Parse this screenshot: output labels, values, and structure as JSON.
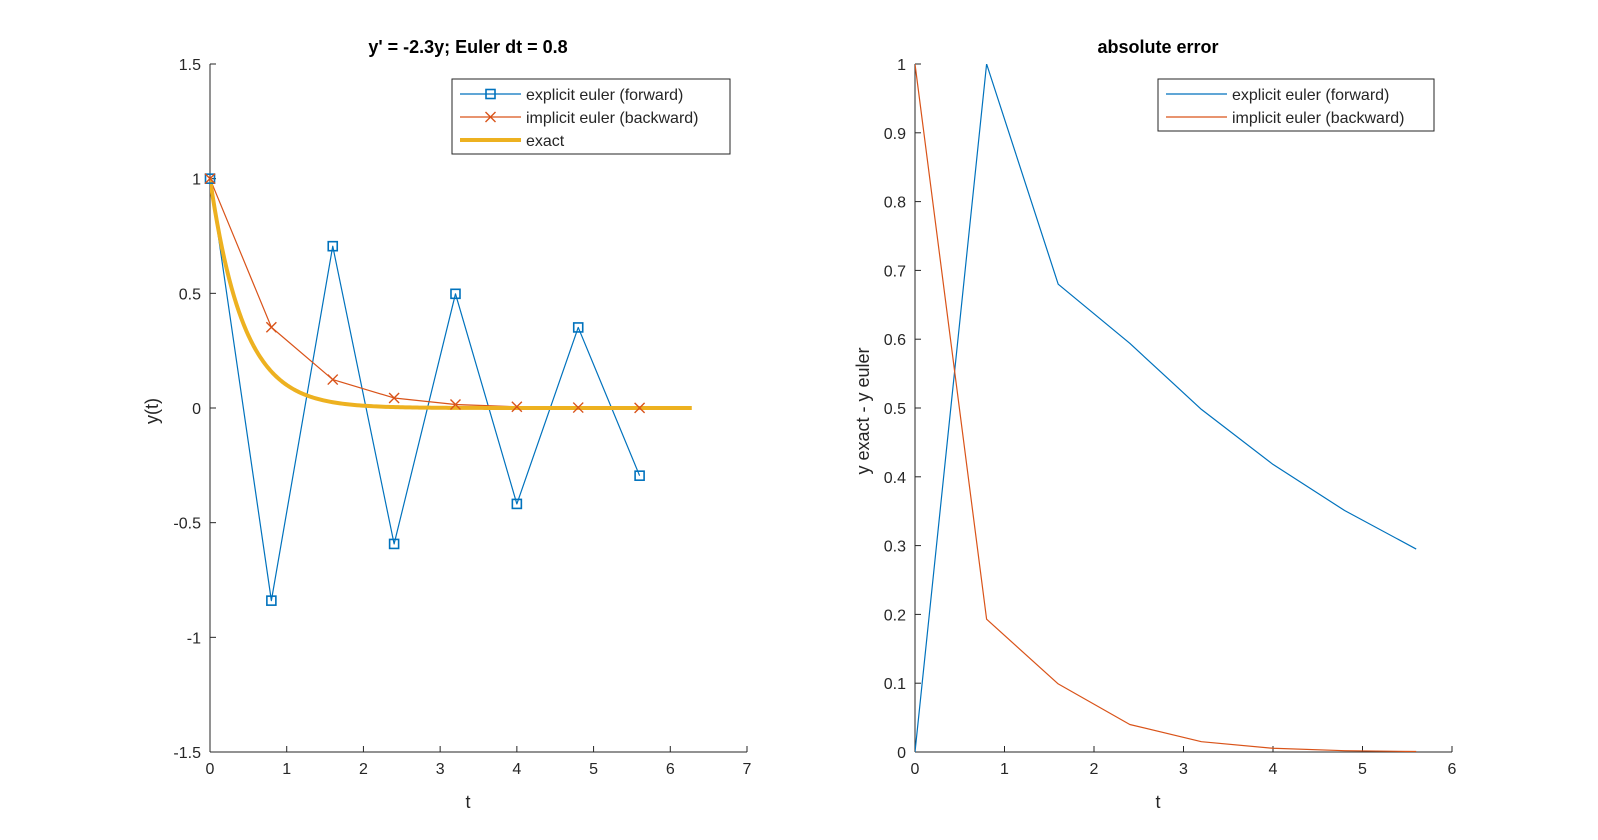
{
  "chart_data": [
    {
      "type": "line",
      "title": "y' = -2.3y; Euler dt = 0.8",
      "xlabel": "t",
      "ylabel": "y(t)",
      "xlim": [
        0,
        7
      ],
      "ylim": [
        -1.5,
        1.5
      ],
      "xticks": [
        0,
        1,
        2,
        3,
        4,
        5,
        6,
        7
      ],
      "yticks": [
        -1.5,
        -1,
        -0.5,
        0,
        0.5,
        1,
        1.5
      ],
      "xtick_labels": [
        "0",
        "1",
        "2",
        "3",
        "4",
        "5",
        "6",
        "7"
      ],
      "ytick_labels": [
        "-1.5",
        "-1",
        "-0.5",
        "0",
        "0.5",
        "1",
        "1.5"
      ],
      "legend_position": "top-right",
      "grid": false,
      "series": [
        {
          "name": "explicit euler (forward)",
          "color": "#0072BD",
          "marker": "square",
          "x": [
            0,
            0.8,
            1.6,
            2.4,
            3.2,
            4.0,
            4.8,
            5.6
          ],
          "y": [
            1,
            -0.84,
            0.7056,
            -0.5927,
            0.4979,
            -0.4182,
            0.3513,
            -0.2951
          ]
        },
        {
          "name": "implicit euler (backward)",
          "color": "#D95319",
          "marker": "x",
          "x": [
            0,
            0.8,
            1.6,
            2.4,
            3.2,
            4.0,
            4.8,
            5.6
          ],
          "y": [
            1,
            0.3521,
            0.124,
            0.0437,
            0.0154,
            0.0054,
            0.0019,
            0.0007
          ]
        },
        {
          "name": "exact",
          "color": "#EDB120",
          "marker": "none",
          "function": "exp(-2.3t)",
          "x_range": [
            0,
            6.28
          ],
          "thick": true
        }
      ]
    },
    {
      "type": "line",
      "title": "absolute error",
      "xlabel": "t",
      "ylabel": "y exact - y euler",
      "xlim": [
        0,
        6
      ],
      "ylim": [
        0,
        1
      ],
      "xticks": [
        0,
        1,
        2,
        3,
        4,
        5,
        6
      ],
      "yticks": [
        0,
        0.1,
        0.2,
        0.3,
        0.4,
        0.5,
        0.6,
        0.7,
        0.8,
        0.9,
        1
      ],
      "xtick_labels": [
        "0",
        "1",
        "2",
        "3",
        "4",
        "5",
        "6"
      ],
      "ytick_labels": [
        "0",
        "0.1",
        "0.2",
        "0.3",
        "0.4",
        "0.5",
        "0.6",
        "0.7",
        "0.8",
        "0.9",
        "1"
      ],
      "legend_position": "top-right",
      "grid": false,
      "series": [
        {
          "name": "explicit euler (forward)",
          "color": "#0072BD",
          "x": [
            0,
            0.8,
            1.6,
            2.4,
            3.2,
            4.0,
            4.8,
            5.6
          ],
          "y": [
            0,
            1.0,
            0.68,
            0.594,
            0.498,
            0.418,
            0.351,
            0.295
          ]
        },
        {
          "name": "implicit euler (backward)",
          "color": "#D95319",
          "x": [
            0,
            0.8,
            1.6,
            2.4,
            3.2,
            4.0,
            4.8,
            5.6
          ],
          "y": [
            1.0,
            0.193,
            0.099,
            0.04,
            0.015,
            0.0054,
            0.0019,
            0.0007
          ]
        }
      ]
    }
  ]
}
